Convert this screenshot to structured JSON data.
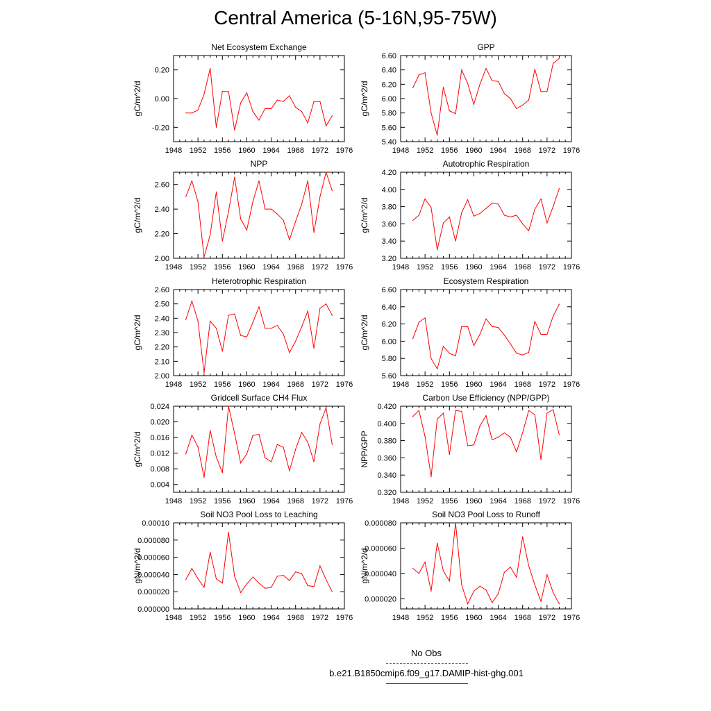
{
  "title": "Central America (5-16N,95-75W)",
  "colors": {
    "series": "#ff0000",
    "obs": "#5555ff",
    "axis": "#000000"
  },
  "legend": {
    "obs_label": "No Obs",
    "model_label": "b.e21.B1850cmip6.f09_g17.DAMIP-hist-ghg.001"
  },
  "chart_data": [
    {
      "type": "line",
      "title": "Net Ecosystem Exchange",
      "xlabel": "",
      "ylabel": "gC/m^2/d",
      "xlim": [
        1948,
        1976
      ],
      "xticks": [
        1948,
        1952,
        1956,
        1960,
        1964,
        1968,
        1972,
        1976
      ],
      "ylim": [
        -0.3,
        0.3
      ],
      "yticks": [
        -0.2,
        0.0,
        0.2
      ],
      "yticklabels": [
        "-0.20",
        "0.00",
        "0.20"
      ],
      "x": [
        1950,
        1951,
        1952,
        1953,
        1954,
        1955,
        1956,
        1957,
        1958,
        1959,
        1960,
        1961,
        1962,
        1963,
        1964,
        1965,
        1966,
        1967,
        1968,
        1969,
        1970,
        1971,
        1972,
        1973,
        1974
      ],
      "y": [
        -0.1,
        -0.1,
        -0.08,
        0.03,
        0.21,
        -0.2,
        0.05,
        0.05,
        -0.22,
        -0.03,
        0.04,
        -0.09,
        -0.15,
        -0.07,
        -0.07,
        -0.01,
        -0.02,
        0.02,
        -0.06,
        -0.09,
        -0.17,
        -0.02,
        -0.02,
        -0.19,
        -0.12
      ]
    },
    {
      "type": "line",
      "title": "GPP",
      "xlabel": "",
      "ylabel": "gC/m^2/d",
      "xlim": [
        1948,
        1976
      ],
      "xticks": [
        1948,
        1952,
        1956,
        1960,
        1964,
        1968,
        1972,
        1976
      ],
      "ylim": [
        5.4,
        6.6
      ],
      "yticks": [
        5.4,
        5.6,
        5.8,
        6.0,
        6.2,
        6.4,
        6.6
      ],
      "yticklabels": [
        "5.40",
        "5.60",
        "5.80",
        "6.00",
        "6.20",
        "6.40",
        "6.60"
      ],
      "x": [
        1950,
        1951,
        1952,
        1953,
        1954,
        1955,
        1956,
        1957,
        1958,
        1959,
        1960,
        1961,
        1962,
        1963,
        1964,
        1965,
        1966,
        1967,
        1968,
        1969,
        1970,
        1971,
        1972,
        1973,
        1974
      ],
      "y": [
        6.15,
        6.33,
        6.36,
        5.8,
        5.49,
        6.16,
        5.83,
        5.79,
        6.4,
        6.21,
        5.92,
        6.2,
        6.42,
        6.25,
        6.24,
        6.07,
        6.0,
        5.86,
        5.91,
        5.98,
        6.41,
        6.1,
        6.1,
        6.49,
        6.56
      ]
    },
    {
      "type": "line",
      "title": "NPP",
      "xlabel": "",
      "ylabel": "gC/m^2/d",
      "xlim": [
        1948,
        1976
      ],
      "xticks": [
        1948,
        1952,
        1956,
        1960,
        1964,
        1968,
        1972,
        1976
      ],
      "ylim": [
        2.0,
        2.7
      ],
      "yticks": [
        2.0,
        2.2,
        2.4,
        2.6
      ],
      "yticklabels": [
        "2.00",
        "2.20",
        "2.40",
        "2.60"
      ],
      "x": [
        1950,
        1951,
        1952,
        1953,
        1954,
        1955,
        1956,
        1957,
        1958,
        1959,
        1960,
        1961,
        1962,
        1963,
        1964,
        1965,
        1966,
        1967,
        1968,
        1969,
        1970,
        1971,
        1972,
        1973,
        1974
      ],
      "y": [
        2.5,
        2.63,
        2.46,
        2.01,
        2.19,
        2.54,
        2.14,
        2.38,
        2.66,
        2.32,
        2.23,
        2.46,
        2.63,
        2.4,
        2.4,
        2.36,
        2.31,
        2.15,
        2.3,
        2.44,
        2.63,
        2.21,
        2.5,
        2.7,
        2.55
      ]
    },
    {
      "type": "line",
      "title": "Autotrophic Respiration",
      "xlabel": "",
      "ylabel": "gC/m^2/d",
      "xlim": [
        1948,
        1976
      ],
      "xticks": [
        1948,
        1952,
        1956,
        1960,
        1964,
        1968,
        1972,
        1976
      ],
      "ylim": [
        3.2,
        4.2
      ],
      "yticks": [
        3.2,
        3.4,
        3.6,
        3.8,
        4.0,
        4.2
      ],
      "yticklabels": [
        "3.20",
        "3.40",
        "3.60",
        "3.80",
        "4.00",
        "4.20"
      ],
      "x": [
        1950,
        1951,
        1952,
        1953,
        1954,
        1955,
        1956,
        1957,
        1958,
        1959,
        1960,
        1961,
        1962,
        1963,
        1964,
        1965,
        1966,
        1967,
        1968,
        1969,
        1970,
        1971,
        1972,
        1973,
        1974
      ],
      "y": [
        3.64,
        3.7,
        3.89,
        3.79,
        3.3,
        3.61,
        3.68,
        3.4,
        3.73,
        3.88,
        3.69,
        3.72,
        3.78,
        3.84,
        3.83,
        3.7,
        3.68,
        3.7,
        3.6,
        3.52,
        3.77,
        3.89,
        3.61,
        3.8,
        4.01
      ]
    },
    {
      "type": "line",
      "title": "Heterotrophic Respiration",
      "xlabel": "",
      "ylabel": "gC/m^2/d",
      "xlim": [
        1948,
        1976
      ],
      "xticks": [
        1948,
        1952,
        1956,
        1960,
        1964,
        1968,
        1972,
        1976
      ],
      "ylim": [
        2.0,
        2.6
      ],
      "yticks": [
        2.0,
        2.1,
        2.2,
        2.3,
        2.4,
        2.5,
        2.6
      ],
      "yticklabels": [
        "2.00",
        "2.10",
        "2.20",
        "2.30",
        "2.40",
        "2.50",
        "2.60"
      ],
      "x": [
        1950,
        1951,
        1952,
        1953,
        1954,
        1955,
        1956,
        1957,
        1958,
        1959,
        1960,
        1961,
        1962,
        1963,
        1964,
        1965,
        1966,
        1967,
        1968,
        1969,
        1970,
        1971,
        1972,
        1973,
        1974
      ],
      "y": [
        2.39,
        2.52,
        2.38,
        2.02,
        2.38,
        2.33,
        2.17,
        2.42,
        2.43,
        2.28,
        2.27,
        2.37,
        2.48,
        2.33,
        2.33,
        2.35,
        2.29,
        2.16,
        2.24,
        2.34,
        2.45,
        2.19,
        2.47,
        2.5,
        2.42
      ]
    },
    {
      "type": "line",
      "title": "Ecosystem Respiration",
      "xlabel": "",
      "ylabel": "gC/m^2/d",
      "xlim": [
        1948,
        1976
      ],
      "xticks": [
        1948,
        1952,
        1956,
        1960,
        1964,
        1968,
        1972,
        1976
      ],
      "ylim": [
        5.6,
        6.6
      ],
      "yticks": [
        5.6,
        5.8,
        6.0,
        6.2,
        6.4,
        6.6
      ],
      "yticklabels": [
        "5.60",
        "5.80",
        "6.00",
        "6.20",
        "6.40",
        "6.60"
      ],
      "x": [
        1950,
        1951,
        1952,
        1953,
        1954,
        1955,
        1956,
        1957,
        1958,
        1959,
        1960,
        1961,
        1962,
        1963,
        1964,
        1965,
        1966,
        1967,
        1968,
        1969,
        1970,
        1971,
        1972,
        1973,
        1974
      ],
      "y": [
        6.03,
        6.22,
        6.27,
        5.8,
        5.68,
        5.94,
        5.86,
        5.83,
        6.17,
        6.17,
        5.95,
        6.08,
        6.26,
        6.17,
        6.16,
        6.07,
        5.97,
        5.86,
        5.84,
        5.87,
        6.23,
        6.08,
        6.08,
        6.29,
        6.43
      ]
    },
    {
      "type": "line",
      "title": "Gridcell Surface CH4 Flux",
      "xlabel": "",
      "ylabel": "gC/m^2/d",
      "xlim": [
        1948,
        1976
      ],
      "xticks": [
        1948,
        1952,
        1956,
        1960,
        1964,
        1968,
        1972,
        1976
      ],
      "ylim": [
        0.002,
        0.024
      ],
      "yticks": [
        0.004,
        0.008,
        0.012,
        0.016,
        0.02,
        0.024
      ],
      "yticklabels": [
        "0.004",
        "0.008",
        "0.012",
        "0.016",
        "0.020",
        "0.024"
      ],
      "x": [
        1950,
        1951,
        1952,
        1953,
        1954,
        1955,
        1956,
        1957,
        1958,
        1959,
        1960,
        1961,
        1962,
        1963,
        1964,
        1965,
        1966,
        1967,
        1968,
        1969,
        1970,
        1971,
        1972,
        1973,
        1974
      ],
      "y": [
        0.0118,
        0.0166,
        0.0136,
        0.0058,
        0.0178,
        0.011,
        0.007,
        0.024,
        0.017,
        0.0095,
        0.0118,
        0.0165,
        0.0168,
        0.0108,
        0.0098,
        0.0142,
        0.0135,
        0.0075,
        0.013,
        0.0173,
        0.0148,
        0.0098,
        0.0195,
        0.0236,
        0.0142
      ]
    },
    {
      "type": "line",
      "title": "Carbon Use Efficiency (NPP/GPP)",
      "xlabel": "",
      "ylabel": "NPP/GPP",
      "xlim": [
        1948,
        1976
      ],
      "xticks": [
        1948,
        1952,
        1956,
        1960,
        1964,
        1968,
        1972,
        1976
      ],
      "ylim": [
        0.32,
        0.42
      ],
      "yticks": [
        0.32,
        0.34,
        0.36,
        0.38,
        0.4,
        0.42
      ],
      "yticklabels": [
        "0.320",
        "0.340",
        "0.360",
        "0.380",
        "0.400",
        "0.420"
      ],
      "x": [
        1950,
        1951,
        1952,
        1953,
        1954,
        1955,
        1956,
        1957,
        1958,
        1959,
        1960,
        1961,
        1962,
        1963,
        1964,
        1965,
        1966,
        1967,
        1968,
        1969,
        1970,
        1971,
        1972,
        1973,
        1974
      ],
      "y": [
        0.408,
        0.415,
        0.385,
        0.338,
        0.405,
        0.412,
        0.364,
        0.415,
        0.414,
        0.374,
        0.375,
        0.397,
        0.409,
        0.381,
        0.384,
        0.389,
        0.384,
        0.367,
        0.389,
        0.415,
        0.41,
        0.358,
        0.412,
        0.416,
        0.387
      ]
    },
    {
      "type": "line",
      "title": "Soil NO3 Pool Loss to Leaching",
      "xlabel": "",
      "ylabel": "gN/m^2/d",
      "xlim": [
        1948,
        1976
      ],
      "xticks": [
        1948,
        1952,
        1956,
        1960,
        1964,
        1968,
        1972,
        1976
      ],
      "ylim": [
        0.0,
        0.0001
      ],
      "yticks": [
        0.0,
        2e-05,
        4e-05,
        6e-05,
        8e-05,
        0.0001
      ],
      "yticklabels": [
        "0.000000",
        "0.000020",
        "0.000040",
        "0.000060",
        "0.000080",
        "0.00010"
      ],
      "x": [
        1950,
        1951,
        1952,
        1953,
        1954,
        1955,
        1956,
        1957,
        1958,
        1959,
        1960,
        1961,
        1962,
        1963,
        1964,
        1965,
        1966,
        1967,
        1968,
        1969,
        1970,
        1971,
        1972,
        1973,
        1974
      ],
      "y": [
        3.4e-05,
        4.7e-05,
        3.5e-05,
        2.5e-05,
        6.6e-05,
        3.5e-05,
        3e-05,
        8.9e-05,
        3.8e-05,
        1.9e-05,
        2.9e-05,
        3.7e-05,
        3e-05,
        2.4e-05,
        2.5e-05,
        3.8e-05,
        3.9e-05,
        3.3e-05,
        4.3e-05,
        4.1e-05,
        2.7e-05,
        2.6e-05,
        5e-05,
        3.4e-05,
        2e-05
      ]
    },
    {
      "type": "line",
      "title": "Soil NO3 Pool Loss to Runoff",
      "xlabel": "",
      "ylabel": "gN/m^2/d",
      "xlim": [
        1948,
        1976
      ],
      "xticks": [
        1948,
        1952,
        1956,
        1960,
        1964,
        1968,
        1972,
        1976
      ],
      "ylim": [
        1.2e-05,
        8e-05
      ],
      "yticks": [
        2e-05,
        4e-05,
        6e-05,
        8e-05
      ],
      "yticklabels": [
        "0.000020",
        "0.000040",
        "0.000060",
        "0.000080"
      ],
      "x": [
        1950,
        1951,
        1952,
        1953,
        1954,
        1955,
        1956,
        1957,
        1958,
        1959,
        1960,
        1961,
        1962,
        1963,
        1964,
        1965,
        1966,
        1967,
        1968,
        1969,
        1970,
        1971,
        1972,
        1973,
        1974
      ],
      "y": [
        4.4e-05,
        4e-05,
        4.9e-05,
        2.6e-05,
        6.4e-05,
        4.2e-05,
        3.4e-05,
        8e-05,
        3.1e-05,
        1.6e-05,
        2.6e-05,
        3e-05,
        2.7e-05,
        1.7e-05,
        2.4e-05,
        4.1e-05,
        4.5e-05,
        3.7e-05,
        6.9e-05,
        4.6e-05,
        3.1e-05,
        1.8e-05,
        3.9e-05,
        2.5e-05,
        1.6e-05
      ]
    }
  ]
}
